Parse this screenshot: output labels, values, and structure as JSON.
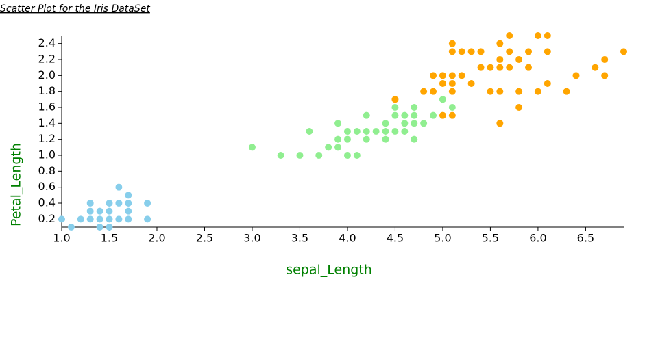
{
  "chart_data": {
    "type": "scatter",
    "title": "Scatter Plot for the Iris DataSet",
    "x_label": "sepal_Length",
    "y_label": "Petal_Length",
    "xlim": [
      1,
      6.9
    ],
    "ylim": [
      0.1,
      2.5
    ],
    "xticks": [
      {
        "value": 1,
        "label": "1.0"
      },
      1.5,
      {
        "value": 2,
        "label": "2.0"
      },
      2.5,
      {
        "value": 3,
        "label": "3.0"
      },
      3.5,
      {
        "value": 4,
        "label": "4.0"
      },
      4.5,
      {
        "value": 5,
        "label": "5.0"
      },
      5.5,
      {
        "value": 6,
        "label": "6.0"
      },
      6.5
    ],
    "yticks": [
      0.2,
      0.4,
      0.6,
      0.8,
      {
        "value": 1,
        "label": "1.0"
      },
      1.2,
      1.4,
      1.6,
      1.8,
      {
        "value": 2,
        "label": "2.0"
      },
      2.2,
      2.4
    ],
    "series": [
      {
        "color": "#87ceeb",
        "x": [
          1.0,
          1.1,
          1.2,
          1.3,
          1.3,
          1.3,
          1.4,
          1.4,
          1.4,
          1.5,
          1.5,
          1.5,
          1.5,
          1.6,
          1.6,
          1.6,
          1.7,
          1.7,
          1.7,
          1.7,
          1.9,
          1.9
        ],
        "values": [
          0.2,
          0.1,
          0.2,
          0.2,
          0.3,
          0.4,
          0.1,
          0.2,
          0.3,
          0.1,
          0.2,
          0.3,
          0.4,
          0.2,
          0.4,
          0.6,
          0.2,
          0.3,
          0.4,
          0.5,
          0.2,
          0.4
        ]
      },
      {
        "color": "#90ee90",
        "x": [
          3.0,
          3.3,
          3.5,
          3.6,
          3.7,
          3.8,
          3.9,
          3.9,
          3.9,
          4.0,
          4.0,
          4.0,
          4.1,
          4.1,
          4.2,
          4.2,
          4.2,
          4.3,
          4.4,
          4.4,
          4.4,
          4.5,
          4.5,
          4.5,
          4.6,
          4.6,
          4.6,
          4.7,
          4.7,
          4.7,
          4.7,
          4.8,
          4.9,
          5.0,
          5.1
        ],
        "values": [
          1.1,
          1.0,
          1.0,
          1.3,
          1.0,
          1.1,
          1.1,
          1.2,
          1.4,
          1.0,
          1.2,
          1.3,
          1.0,
          1.3,
          1.2,
          1.3,
          1.5,
          1.3,
          1.2,
          1.3,
          1.4,
          1.3,
          1.5,
          1.6,
          1.3,
          1.4,
          1.5,
          1.2,
          1.4,
          1.5,
          1.6,
          1.4,
          1.5,
          1.7,
          1.6
        ]
      },
      {
        "color": "#ffa500",
        "x": [
          4.5,
          4.8,
          4.9,
          4.9,
          5.0,
          5.0,
          5.0,
          5.1,
          5.1,
          5.1,
          5.1,
          5.1,
          5.1,
          5.2,
          5.2,
          5.3,
          5.3,
          5.4,
          5.4,
          5.5,
          5.5,
          5.6,
          5.6,
          5.6,
          5.6,
          5.6,
          5.7,
          5.7,
          5.7,
          5.8,
          5.8,
          5.8,
          5.9,
          5.9,
          6.0,
          6.0,
          6.1,
          6.1,
          6.1,
          6.3,
          6.4,
          6.6,
          6.7,
          6.7,
          6.9
        ],
        "values": [
          1.7,
          1.8,
          1.8,
          2.0,
          1.5,
          1.9,
          2.0,
          1.5,
          1.8,
          1.9,
          2.0,
          2.3,
          2.4,
          2.0,
          2.3,
          1.9,
          2.3,
          2.1,
          2.3,
          1.8,
          2.1,
          1.4,
          1.8,
          2.1,
          2.2,
          2.4,
          2.1,
          2.3,
          2.5,
          1.6,
          1.8,
          2.2,
          2.1,
          2.3,
          1.8,
          2.5,
          1.9,
          2.3,
          2.5,
          1.8,
          2.0,
          2.1,
          2.0,
          2.2,
          2.3
        ]
      }
    ]
  }
}
